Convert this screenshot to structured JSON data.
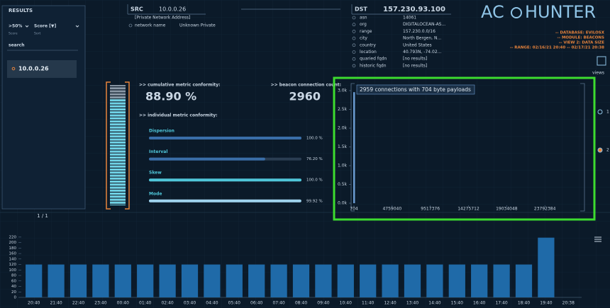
{
  "sidebar": {
    "title": "RESULTS",
    "filter": ">50%",
    "sort": "Score [▼]",
    "filter_caption": "Score",
    "sort_caption": "Sort",
    "search": "search",
    "results": [
      "10.0.0.26"
    ],
    "pager": "1 / 1"
  },
  "src": {
    "label": "SRC",
    "ip": "10.0.0.26",
    "note": "[Private Network Address]",
    "fields": [
      [
        "network name",
        "Unknown Private"
      ]
    ]
  },
  "dst": {
    "label": "DST",
    "ip": "157.230.93.100",
    "fields": [
      [
        "asn",
        "14061"
      ],
      [
        "org",
        "DIGITALOCEAN-AS..."
      ],
      [
        "range",
        "157.230.0.0/16"
      ],
      [
        "city",
        "North Bergen, N..."
      ],
      [
        "country",
        "United States"
      ],
      [
        "location",
        "40.793N, -74.02..."
      ],
      [
        "quaried fqdn",
        "[no results]"
      ],
      [
        "historic fqdn",
        "[no results]"
      ]
    ]
  },
  "logo": {
    "left": "AC",
    "right": "HUNTER"
  },
  "context": [
    "-- DATABASE: EVILOSX",
    "-- MODULE: BEACONS",
    "-- VIEW 2: DATA SIZE",
    "-- RANGE: 02/16/21 20:40 -- 02/17/21 20:38"
  ],
  "views": {
    "title": "views",
    "items": [
      "1",
      "2"
    ]
  },
  "metrics": {
    "cumulative_title": ">> cumulative metric conformity:",
    "cumulative": {
      "value": 88.9,
      "label": "88.90 %"
    },
    "count_title": ">> beacon connection count:",
    "count": 2960,
    "individual_title": ">> individual metric conformity:",
    "xlim": [
      0,
      100
    ],
    "items": [
      {
        "name": "Dispersion",
        "value": 100,
        "label": "100.0 %"
      },
      {
        "name": "Interval",
        "value": 76.2,
        "label": "76.20 %"
      },
      {
        "name": "Skew",
        "value": 100,
        "label": "100.0 %"
      },
      {
        "name": "Mode",
        "value": 99.92,
        "label": "99.92 %"
      }
    ]
  },
  "chart_data": [
    {
      "type": "bar",
      "x": [
        704
      ],
      "values": [
        2959
      ],
      "color": "#6a9bd1",
      "annotation": "2959 connections with 704 byte payloads",
      "xlim": [
        704,
        28550000
      ],
      "xticks": [
        704,
        4759040,
        9517376,
        14275712,
        19034048,
        23792384
      ],
      "ylim": [
        0,
        3000
      ],
      "yticks": [
        {
          "value": 0,
          "label": "0.0k"
        },
        {
          "value": 500,
          "label": "0.5k"
        },
        {
          "value": 1000,
          "label": "1.0k"
        },
        {
          "value": 1500,
          "label": "1.5k"
        },
        {
          "value": 2000,
          "label": "2.0k"
        },
        {
          "value": 2500,
          "label": "2.5k"
        },
        {
          "value": 3000,
          "label": "3.0k"
        }
      ]
    },
    {
      "type": "bar",
      "color": "#1f6aa8",
      "categories": [
        "20:40",
        "21:40",
        "22:40",
        "23:40",
        "00:40",
        "01:40",
        "02:40",
        "03:40",
        "04:40",
        "05:40",
        "06:40",
        "07:40",
        "08:40",
        "09:40",
        "10:40",
        "11:40",
        "12:40",
        "13:40",
        "14:40",
        "15:40",
        "16:40",
        "17:40",
        "18:40",
        "19:40",
        "20:38"
      ],
      "values": [
        120,
        120,
        120,
        120,
        120,
        120,
        120,
        120,
        120,
        120,
        120,
        120,
        120,
        120,
        120,
        120,
        120,
        120,
        120,
        120,
        120,
        120,
        120,
        218,
        null
      ],
      "ylim": [
        0,
        230
      ],
      "yticks": [
        0,
        20,
        40,
        60,
        80,
        100,
        120,
        140,
        160,
        180,
        200,
        220
      ]
    }
  ]
}
